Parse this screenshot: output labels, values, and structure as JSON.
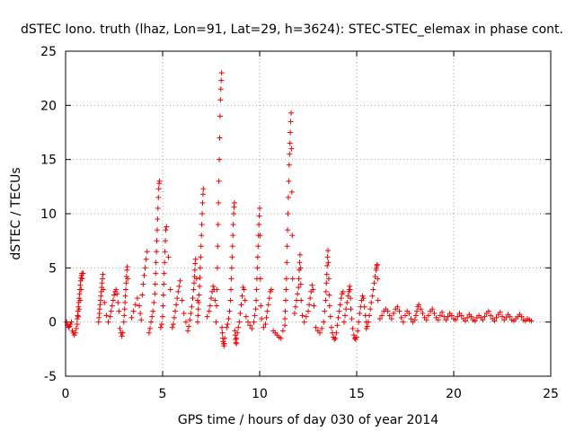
{
  "chart_data": {
    "type": "scatter",
    "title": "dSTEC Iono. truth (lhaz, Lon=91, Lat=29, h=3624): STEC-STEC_elemax in phase cont.",
    "xlabel": "GPS time / hours of day 030 of year 2014",
    "ylabel": "dSTEC  / TECUs",
    "xlim": [
      0,
      25
    ],
    "ylim": [
      -5,
      25
    ],
    "xticks": [
      0,
      5,
      10,
      15,
      20,
      25
    ],
    "yticks": [
      -5,
      0,
      5,
      10,
      15,
      20,
      25
    ],
    "grid": true,
    "marker": "+",
    "color": "#ee0000",
    "series": [
      {
        "x": [
          0.05,
          0.1,
          0.15,
          0.2,
          0.25,
          0.3,
          0.35,
          0.4,
          0.45,
          0.5,
          0.55,
          0.6,
          0.65,
          0.7,
          0.75,
          0.8,
          0.85,
          0.9,
          0.6,
          0.62,
          0.64,
          0.66,
          0.68,
          0.7,
          0.72,
          0.74,
          0.76,
          0.78,
          0.8,
          0.82,
          0.84,
          1.7,
          1.72,
          1.74,
          1.76,
          1.78,
          1.8,
          1.82,
          1.84,
          1.86,
          1.88,
          1.9,
          1.92,
          1.95,
          2.0,
          2.1,
          2.2,
          2.3,
          2.35,
          2.4,
          2.45,
          2.5,
          2.55,
          2.6,
          2.65,
          2.7,
          2.75,
          2.8,
          2.85,
          2.9,
          2.95,
          3.0,
          3.02,
          3.04,
          3.06,
          3.08,
          3.1,
          3.12,
          3.14,
          3.16,
          3.18,
          3.2,
          3.4,
          3.5,
          3.6,
          3.7,
          3.8,
          3.85,
          3.9,
          3.95,
          4.0,
          4.05,
          4.1,
          4.15,
          4.2,
          4.3,
          4.35,
          4.4,
          4.45,
          4.5,
          4.55,
          4.6,
          4.62,
          4.64,
          4.66,
          4.68,
          4.7,
          4.72,
          4.74,
          4.76,
          4.78,
          4.8,
          4.82,
          4.84,
          4.9,
          4.95,
          5.0,
          5.02,
          5.04,
          5.06,
          5.08,
          5.1,
          5.12,
          5.14,
          5.16,
          5.2,
          5.3,
          5.4,
          5.5,
          5.55,
          5.6,
          5.65,
          5.7,
          5.75,
          5.8,
          5.85,
          5.9,
          6.0,
          6.1,
          6.2,
          6.3,
          6.35,
          6.4,
          6.45,
          6.5,
          6.55,
          6.6,
          6.62,
          6.64,
          6.66,
          6.68,
          6.7,
          6.75,
          6.8,
          6.8,
          6.82,
          6.84,
          6.86,
          6.88,
          6.9,
          6.92,
          6.94,
          6.96,
          6.98,
          7.0,
          7.02,
          7.04,
          7.06,
          7.08,
          7.1,
          7.3,
          7.4,
          7.45,
          7.5,
          7.55,
          7.6,
          7.65,
          7.7,
          7.75,
          7.78,
          7.8,
          7.82,
          7.84,
          7.86,
          7.88,
          7.9,
          7.92,
          7.94,
          7.96,
          7.98,
          8.0,
          8.02,
          8.04,
          8.06,
          8.08,
          8.1,
          8.12,
          8.14,
          8.16,
          8.18,
          8.2,
          8.3,
          8.35,
          8.4,
          8.45,
          8.5,
          8.52,
          8.54,
          8.56,
          8.58,
          8.6,
          8.62,
          8.64,
          8.66,
          8.68,
          8.7,
          8.72,
          8.74,
          8.76,
          8.78,
          8.8,
          8.8,
          8.85,
          8.9,
          8.95,
          9.0,
          9.05,
          9.1,
          9.15,
          9.2,
          9.25,
          9.3,
          9.4,
          9.5,
          9.6,
          9.7,
          9.75,
          9.8,
          9.82,
          9.84,
          9.86,
          9.88,
          9.9,
          9.92,
          9.94,
          9.96,
          9.98,
          10.0,
          10.02,
          10.04,
          10.06,
          10.1,
          10.2,
          10.3,
          10.35,
          10.4,
          10.45,
          10.5,
          10.55,
          10.6,
          10.7,
          10.8,
          10.9,
          11.0,
          11.1,
          11.2,
          11.3,
          11.3,
          11.32,
          11.34,
          11.36,
          11.38,
          11.4,
          11.42,
          11.44,
          11.46,
          11.48,
          11.5,
          11.52,
          11.54,
          11.56,
          11.58,
          11.6,
          11.62,
          11.64,
          11.66,
          11.68,
          11.7,
          11.8,
          11.85,
          11.9,
          11.95,
          12.0,
          12.02,
          12.04,
          12.06,
          12.08,
          12.1,
          12.12,
          12.14,
          12.2,
          12.3,
          12.4,
          12.5,
          12.55,
          12.6,
          12.65,
          12.7,
          12.75,
          12.8,
          12.9,
          13.0,
          13.1,
          13.2,
          13.3,
          13.35,
          13.4,
          13.42,
          13.44,
          13.46,
          13.48,
          13.5,
          13.52,
          13.54,
          13.56,
          13.58,
          13.6,
          13.65,
          13.7,
          13.75,
          13.8,
          13.85,
          13.9,
          13.95,
          14.0,
          14.05,
          14.1,
          14.15,
          14.2,
          14.25,
          14.3,
          14.35,
          14.4,
          14.45,
          14.5,
          14.55,
          14.6,
          14.62,
          14.64,
          14.66,
          14.68,
          14.7,
          14.75,
          14.8,
          14.85,
          14.9,
          14.95,
          15.0,
          15.05,
          15.1,
          15.15,
          15.2,
          15.25,
          15.3,
          15.35,
          15.4,
          15.45,
          15.5,
          15.5,
          15.55,
          15.6,
          15.65,
          15.7,
          15.75,
          15.8,
          15.85,
          15.9,
          15.95,
          16.0,
          16.02,
          16.04,
          16.06,
          16.08,
          16.1,
          16.2,
          16.3,
          16.4,
          16.5,
          16.6,
          16.7,
          16.8,
          16.9,
          17.0,
          17.1,
          17.2,
          17.3,
          17.4,
          17.5,
          17.6,
          17.7,
          17.8,
          17.9,
          18.0,
          18.05,
          18.1,
          18.15,
          18.2,
          18.3,
          18.4,
          18.5,
          18.6,
          18.7,
          18.8,
          18.9,
          19.0,
          19.1,
          19.2,
          19.3,
          19.4,
          19.5,
          19.6,
          19.7,
          19.8,
          19.9,
          20.0,
          20.1,
          20.2,
          20.3,
          20.4,
          20.5,
          20.6,
          20.7,
          20.8,
          20.9,
          21.0,
          21.1,
          21.2,
          21.3,
          21.4,
          21.5,
          21.6,
          21.7,
          21.8,
          21.9,
          22.0,
          22.1,
          22.2,
          22.3,
          22.4,
          22.5,
          22.6,
          22.7,
          22.8,
          22.9,
          23.0,
          23.1,
          23.2,
          23.3,
          23.4,
          23.5,
          23.6,
          23.7,
          23.8,
          23.9,
          24.0
        ],
        "y": [
          0,
          -0.3,
          -0.5,
          -0.4,
          -0.2,
          0,
          -0.8,
          -1.0,
          -1.2,
          -1.0,
          -0.6,
          -0.2,
          0.5,
          1.2,
          2.0,
          3.0,
          4.0,
          4.5,
          0.3,
          0.6,
          1.0,
          1.4,
          1.8,
          2.2,
          2.6,
          3.0,
          3.4,
          3.8,
          4.1,
          4.3,
          4.5,
          0,
          0.4,
          0.8,
          1.2,
          1.6,
          2.0,
          2.4,
          2.8,
          3.2,
          3.6,
          4.0,
          4.4,
          3.0,
          1.8,
          0.6,
          0,
          0.5,
          1.0,
          1.5,
          2.0,
          2.5,
          2.8,
          3.0,
          2.6,
          1.8,
          1.0,
          -0.6,
          -1.0,
          -1.3,
          -1.0,
          0,
          0.6,
          1.2,
          1.8,
          2.4,
          3.0,
          3.6,
          4.2,
          4.8,
          5.1,
          4.0,
          0.4,
          1.0,
          1.6,
          2.2,
          1.5,
          0.8,
          0.2,
          2.5,
          3.5,
          4.3,
          5.0,
          5.8,
          6.5,
          -1.0,
          -0.6,
          0,
          0.5,
          1.0,
          1.8,
          2.6,
          3.5,
          4.5,
          5.5,
          6.5,
          7.5,
          8.5,
          9.5,
          10.5,
          11.5,
          12.3,
          12.8,
          13.0,
          -0.5,
          -0.2,
          0.5,
          1.5,
          2.5,
          3.5,
          4.5,
          5.5,
          6.5,
          7.5,
          8.5,
          8.8,
          6.0,
          3.0,
          -0.5,
          -0.2,
          0.4,
          1.0,
          1.6,
          2.2,
          2.8,
          3.3,
          3.8,
          2.0,
          0.8,
          0,
          -0.8,
          -0.4,
          0.2,
          0.8,
          1.4,
          2.2,
          3.0,
          3.6,
          4.2,
          4.8,
          5.4,
          5.8,
          4.0,
          2.0,
          0,
          0.6,
          1.2,
          1.8,
          2.5,
          3.3,
          4.1,
          5.0,
          6.0,
          7.0,
          8.0,
          9.0,
          10.0,
          11.0,
          11.8,
          12.3,
          0.5,
          1.0,
          1.5,
          2.2,
          2.8,
          3.3,
          3.0,
          2.0,
          0,
          1.5,
          3.0,
          5.0,
          7.0,
          9.0,
          11.0,
          13.0,
          15.0,
          17.0,
          19.0,
          20.5,
          21.5,
          22.3,
          23.0,
          -0.5,
          -1.0,
          -1.5,
          -1.8,
          -2.0,
          -2.2,
          -2.0,
          -1.5,
          -0.5,
          -0.2,
          0.3,
          1.0,
          2.0,
          3.0,
          4.0,
          5.0,
          6.0,
          7.0,
          8.0,
          9.0,
          10.0,
          10.6,
          11.0,
          -0.8,
          -1.2,
          -1.6,
          -1.9,
          -2.0,
          -1.5,
          -1.0,
          -0.5,
          0,
          0.8,
          1.6,
          2.4,
          3.2,
          3.0,
          2.0,
          0.5,
          0,
          -0.3,
          -0.6,
          0,
          0.6,
          1.2,
          2.0,
          3.0,
          4.0,
          5.0,
          6.0,
          7.0,
          8.0,
          9.0,
          9.8,
          10.5,
          8.0,
          4.0,
          1.5,
          0.3,
          -0.5,
          -0.2,
          0.4,
          1.0,
          1.6,
          2.2,
          2.8,
          3.0,
          -0.8,
          -1.0,
          -1.2,
          -1.4,
          -1.5,
          -0.8,
          -0.3,
          0.3,
          1.0,
          2.0,
          3.0,
          4.0,
          5.5,
          7.0,
          8.5,
          10.0,
          11.5,
          13.0,
          14.5,
          15.5,
          16.5,
          17.5,
          18.5,
          19.3,
          16.0,
          12.0,
          8.0,
          4.0,
          0.8,
          1.4,
          2.0,
          2.6,
          3.2,
          4.0,
          4.8,
          5.5,
          6.2,
          5.0,
          3.5,
          2.0,
          0.6,
          0,
          0.5,
          1.0,
          1.6,
          2.2,
          2.8,
          3.4,
          3.0,
          1.5,
          -0.5,
          -0.8,
          -1.0,
          -0.6,
          0,
          1.0,
          2.0,
          2.8,
          3.6,
          4.4,
          5.2,
          6.0,
          6.6,
          5.5,
          4.0,
          2.5,
          1.5,
          0.5,
          -0.5,
          -1.0,
          -1.4,
          -1.6,
          -1.5,
          -1.0,
          -0.3,
          0.4,
          1.0,
          1.6,
          2.2,
          2.6,
          2.8,
          0,
          0.6,
          1.2,
          1.8,
          2.4,
          2.8,
          3.0,
          3.3,
          3.0,
          2.2,
          1.2,
          0.3,
          -0.6,
          -1.2,
          -1.5,
          -1.6,
          -1.4,
          -0.8,
          0,
          0.8,
          1.4,
          2.0,
          2.4,
          2.2,
          1.4,
          0.6,
          0,
          -0.6,
          -0.4,
          0,
          0.6,
          1.2,
          1.8,
          2.4,
          3.0,
          3.6,
          4.2,
          4.8,
          5.0,
          5.2,
          5.3,
          4.0,
          2.0,
          0.3,
          0.6,
          1.0,
          1.2,
          1.0,
          0.6,
          0.3,
          0.8,
          1.2,
          1.4,
          1.0,
          0.4,
          0,
          0.6,
          1.0,
          0.8,
          0.3,
          0,
          0.2,
          0.6,
          1.0,
          1.4,
          1.6,
          1.2,
          0.8,
          0.4,
          0.2,
          0.6,
          1.0,
          1.2,
          0.8,
          0.4,
          0.2,
          0.6,
          0.9,
          0.5,
          0.2,
          0.5,
          0.8,
          0.6,
          0.3,
          0.2,
          0.5,
          0.8,
          0.6,
          0.3,
          0.1,
          0.4,
          0.7,
          0.5,
          0.2,
          0.1,
          0.4,
          0.6,
          0.4,
          0.2,
          0.5,
          0.8,
          1.0,
          0.6,
          0.3,
          0.1,
          0.4,
          0.7,
          0.9,
          0.5,
          0.2,
          0.4,
          0.7,
          0.5,
          0.2,
          0.1,
          0.3,
          0.5,
          0.7,
          0.5,
          0.2,
          0.1,
          0.3,
          0.2,
          0.1
        ]
      }
    ]
  }
}
